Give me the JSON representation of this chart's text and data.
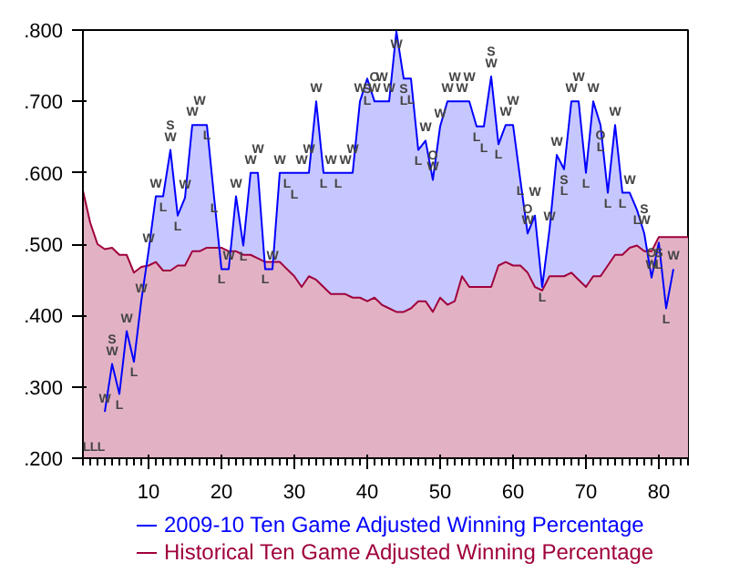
{
  "chart_data": {
    "type": "area",
    "x": [
      1,
      2,
      3,
      4,
      5,
      6,
      7,
      8,
      9,
      10,
      11,
      12,
      13,
      14,
      15,
      16,
      17,
      18,
      19,
      20,
      21,
      22,
      23,
      24,
      25,
      26,
      27,
      28,
      29,
      30,
      31,
      32,
      33,
      34,
      35,
      36,
      37,
      38,
      39,
      40,
      41,
      42,
      43,
      44,
      45,
      46,
      47,
      48,
      49,
      50,
      51,
      52,
      53,
      54,
      55,
      56,
      57,
      58,
      59,
      60,
      61,
      62,
      63,
      64,
      65,
      66,
      67,
      68,
      69,
      70,
      71,
      72,
      73,
      74,
      75,
      76,
      77,
      78,
      79,
      80,
      81,
      82,
      83,
      84
    ],
    "series": [
      {
        "name": "Historical Ten Game Adjusted Winning Percentage",
        "color": "#a0003c",
        "values": [
          0.575,
          0.53,
          0.5,
          0.493,
          0.495,
          0.485,
          0.485,
          0.46,
          0.468,
          0.47,
          0.475,
          0.463,
          0.463,
          0.47,
          0.47,
          0.49,
          0.49,
          0.495,
          0.495,
          0.495,
          0.49,
          0.49,
          0.485,
          0.485,
          0.48,
          0.475,
          0.475,
          0.475,
          0.465,
          0.455,
          0.44,
          0.455,
          0.45,
          0.44,
          0.43,
          0.43,
          0.43,
          0.425,
          0.425,
          0.42,
          0.425,
          0.415,
          0.41,
          0.405,
          0.405,
          0.41,
          0.42,
          0.42,
          0.405,
          0.425,
          0.415,
          0.42,
          0.455,
          0.44,
          0.44,
          0.44,
          0.44,
          0.47,
          0.475,
          0.47,
          0.47,
          0.46,
          0.44,
          0.435,
          0.455,
          0.455,
          0.455,
          0.46,
          0.45,
          0.44,
          0.455,
          0.455,
          0.47,
          0.485,
          0.485,
          0.495,
          0.498,
          0.49,
          0.49,
          0.51,
          0.51,
          0.51,
          0.51,
          0.51
        ]
      },
      {
        "name": "2009-10 Ten Game Adjusted Winning Percentage",
        "color": "#0000ff",
        "values": [
          null,
          null,
          null,
          0.265,
          0.332,
          0.29,
          0.378,
          0.335,
          0.42,
          0.49,
          0.567,
          0.567,
          0.632,
          0.54,
          0.565,
          0.667,
          0.667,
          0.667,
          0.565,
          0.465,
          0.465,
          0.567,
          0.498,
          0.6,
          0.6,
          0.465,
          0.465,
          0.6,
          0.6,
          0.6,
          0.6,
          0.6,
          0.7,
          0.6,
          0.6,
          0.6,
          0.6,
          0.6,
          0.7,
          0.732,
          0.7,
          0.7,
          0.7,
          0.798,
          0.732,
          0.732,
          0.632,
          0.645,
          0.59,
          0.665,
          0.7,
          0.7,
          0.7,
          0.7,
          0.665,
          0.665,
          0.735,
          0.64,
          0.667,
          0.667,
          0.59,
          0.515,
          0.54,
          0.44,
          0.52,
          0.625,
          0.605,
          0.7,
          0.7,
          0.6,
          0.7,
          0.667,
          0.572,
          0.667,
          0.572,
          0.572,
          0.548,
          0.515,
          0.453,
          0.502,
          0.41,
          0.465,
          null,
          null
        ],
        "value_labels": [
          "L",
          "L",
          "L",
          "W",
          "SW",
          "L",
          "W",
          "L",
          "W",
          "W",
          "W",
          "L",
          "SW",
          "L",
          "W",
          "W",
          "W",
          "L",
          "L",
          "L",
          "W",
          "W",
          "L",
          "W",
          "W",
          "L",
          "W",
          "W",
          "L",
          "L",
          "W",
          "W",
          "W",
          "L",
          "W",
          "L",
          "W",
          "W",
          "W",
          "SL",
          "OW",
          "W",
          "W",
          "W",
          "SL",
          "L",
          "L",
          "W",
          "OW",
          "W",
          "W",
          "W",
          "W",
          "W",
          "L",
          "L",
          "SW",
          "L",
          "W",
          "W",
          "L",
          "OW",
          "W",
          "L",
          "W",
          "W",
          "SL",
          "W",
          "W",
          "L",
          "W",
          "OL",
          "L",
          "W",
          "L",
          "W",
          "L",
          "SW",
          "OW",
          "SL",
          "L",
          "W",
          null,
          null
        ]
      }
    ],
    "xlim": [
      1,
      84
    ],
    "ylim": [
      0.2,
      0.8
    ],
    "xticks": [
      10,
      20,
      30,
      40,
      50,
      60,
      70,
      80
    ],
    "yticks": [
      {
        "value": 0.2,
        "label": ".200"
      },
      {
        "value": 0.3,
        "label": ".300"
      },
      {
        "value": 0.4,
        "label": ".400"
      },
      {
        "value": 0.5,
        "label": ".500"
      },
      {
        "value": 0.6,
        "label": ".600"
      },
      {
        "value": 0.7,
        "label": ".700"
      },
      {
        "value": 0.8,
        "label": ".800"
      }
    ],
    "grid": false,
    "legend": "bottom"
  }
}
